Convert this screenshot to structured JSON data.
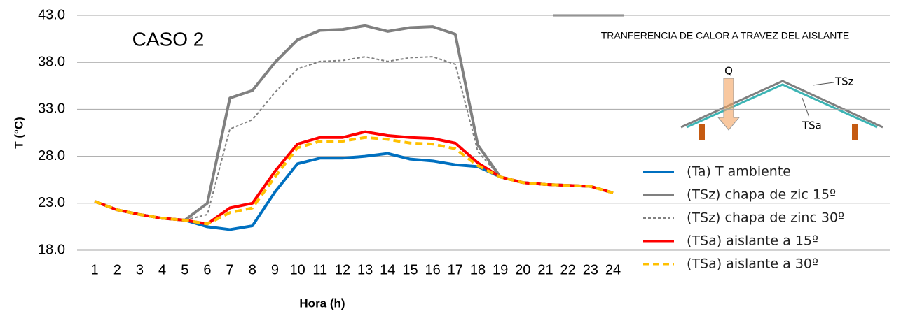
{
  "chart_data": {
    "type": "line",
    "annotations": [
      "CASO 2",
      "TRANFERENCIA DE CALOR A TRAVEZ DEL AISLANTE"
    ],
    "diagram_labels": [
      "Q",
      "TSz",
      "TSa"
    ],
    "x_label": "Hora (h)",
    "y_label": "T (°C)",
    "categories": [
      "1",
      "2",
      "3",
      "4",
      "5",
      "6",
      "7",
      "8",
      "9",
      "10",
      "11",
      "12",
      "13",
      "14",
      "15",
      "16",
      "17",
      "18",
      "19",
      "20",
      "21",
      "22",
      "23",
      "24"
    ],
    "ylim": [
      18,
      43
    ],
    "yticks": [
      {
        "value": 18,
        "label": "18.0"
      },
      {
        "value": 23,
        "label": "23.0"
      },
      {
        "value": 28,
        "label": "28.0"
      },
      {
        "value": 33,
        "label": "33.0"
      },
      {
        "value": 38,
        "label": "38.0"
      },
      {
        "value": 43,
        "label": "43.0"
      }
    ],
    "grid": true,
    "series": [
      {
        "name": "(Ta) T ambiente",
        "color": "#0070c0",
        "style": "solid",
        "width": 4,
        "values": [
          23.2,
          22.3,
          21.8,
          21.4,
          21.2,
          20.5,
          20.2,
          20.6,
          24.2,
          27.2,
          27.8,
          27.8,
          28.0,
          28.3,
          27.7,
          27.5,
          27.1,
          26.9,
          25.8,
          25.2,
          25.0,
          24.9,
          24.8,
          24.1
        ]
      },
      {
        "name": "(TSz) chapa de zic 15º",
        "color": "#808080",
        "style": "solid",
        "width": 4,
        "values": [
          23.2,
          22.3,
          21.8,
          21.4,
          21.2,
          23.0,
          34.2,
          35.0,
          38.0,
          40.4,
          41.4,
          41.5,
          41.9,
          41.3,
          41.7,
          41.8,
          41.0,
          29.2,
          25.8,
          25.2,
          25.0,
          24.9,
          24.8,
          24.1
        ]
      },
      {
        "name": "(TSz) chapa de zinc 30º",
        "color": "#808080",
        "style": "dashed",
        "width": 2,
        "values": [
          23.2,
          22.3,
          21.8,
          21.4,
          21.2,
          21.8,
          30.9,
          31.9,
          34.8,
          37.3,
          38.1,
          38.2,
          38.6,
          38.1,
          38.5,
          38.6,
          37.8,
          28.5,
          25.8,
          25.2,
          25.0,
          24.9,
          24.8,
          24.1
        ]
      },
      {
        "name": "(TSa) aislante a 15º",
        "color": "#ff0000",
        "style": "solid",
        "width": 4,
        "values": [
          23.2,
          22.3,
          21.8,
          21.4,
          21.2,
          20.8,
          22.5,
          23.0,
          26.4,
          29.3,
          30.0,
          30.0,
          30.6,
          30.2,
          30.0,
          29.9,
          29.4,
          27.3,
          25.8,
          25.2,
          25.0,
          24.9,
          24.8,
          24.1
        ]
      },
      {
        "name": "(TSa) aislante a 30º",
        "color": "#ffc000",
        "style": "dashed",
        "width": 4,
        "values": [
          23.2,
          22.3,
          21.8,
          21.4,
          21.2,
          20.8,
          22.0,
          22.5,
          25.8,
          28.9,
          29.6,
          29.6,
          30.0,
          29.8,
          29.4,
          29.3,
          28.8,
          27.0,
          25.8,
          25.2,
          25.0,
          24.9,
          24.8,
          24.1
        ]
      }
    ]
  }
}
